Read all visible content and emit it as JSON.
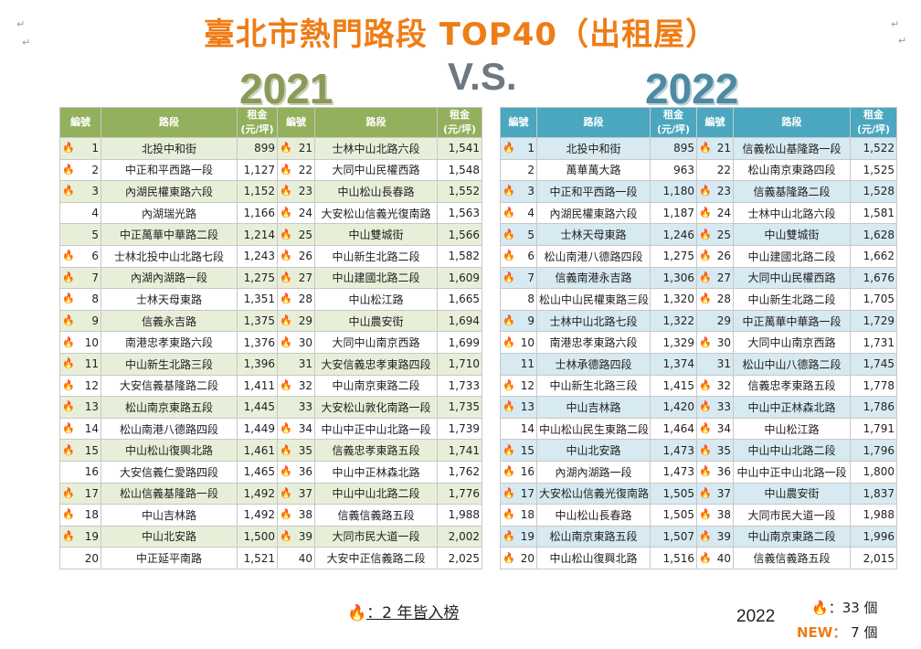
{
  "title": "臺北市熱門路段 TOP40（出租屋）",
  "year_left": "2021",
  "vs": "V.S.",
  "year_right": "2022",
  "flame": "🔥",
  "accent_orange": "#ef7d16",
  "headers": {
    "no": "編號",
    "road": "路段",
    "rent1": "租金",
    "rent2": "(元/坪)"
  },
  "t2021": [
    {
      "n": "1",
      "f": true,
      "road": "北投中和街",
      "rent": "899"
    },
    {
      "n": "2",
      "f": true,
      "road": "中正和平西路一段",
      "rent": "1,127"
    },
    {
      "n": "3",
      "f": true,
      "road": "內湖民權東路六段",
      "rent": "1,152"
    },
    {
      "n": "4",
      "f": false,
      "road": "內湖瑞光路",
      "rent": "1,166"
    },
    {
      "n": "5",
      "f": false,
      "road": "中正萬華中華路二段",
      "rent": "1,214"
    },
    {
      "n": "6",
      "f": true,
      "road": "士林北投中山北路七段",
      "rent": "1,243"
    },
    {
      "n": "7",
      "f": true,
      "road": "內湖內湖路一段",
      "rent": "1,275"
    },
    {
      "n": "8",
      "f": true,
      "road": "士林天母東路",
      "rent": "1,351"
    },
    {
      "n": "9",
      "f": true,
      "road": "信義永吉路",
      "rent": "1,375"
    },
    {
      "n": "10",
      "f": true,
      "road": "南港忠孝東路六段",
      "rent": "1,376"
    },
    {
      "n": "11",
      "f": true,
      "road": "中山新生北路三段",
      "rent": "1,396"
    },
    {
      "n": "12",
      "f": true,
      "road": "大安信義基隆路二段",
      "rent": "1,411"
    },
    {
      "n": "13",
      "f": true,
      "road": "松山南京東路五段",
      "rent": "1,445"
    },
    {
      "n": "14",
      "f": true,
      "road": "松山南港八德路四段",
      "rent": "1,449"
    },
    {
      "n": "15",
      "f": true,
      "road": "中山松山復興北路",
      "rent": "1,461"
    },
    {
      "n": "16",
      "f": false,
      "road": "大安信義仁愛路四段",
      "rent": "1,465"
    },
    {
      "n": "17",
      "f": true,
      "road": "松山信義基隆路一段",
      "rent": "1,492"
    },
    {
      "n": "18",
      "f": true,
      "road": "中山吉林路",
      "rent": "1,492"
    },
    {
      "n": "19",
      "f": true,
      "road": "中山北安路",
      "rent": "1,500"
    },
    {
      "n": "20",
      "f": false,
      "road": "中正延平南路",
      "rent": "1,521"
    },
    {
      "n": "21",
      "f": true,
      "road": "士林中山北路六段",
      "rent": "1,541"
    },
    {
      "n": "22",
      "f": true,
      "road": "大同中山民權西路",
      "rent": "1,548"
    },
    {
      "n": "23",
      "f": true,
      "road": "中山松山長春路",
      "rent": "1,552"
    },
    {
      "n": "24",
      "f": true,
      "road": "大安松山信義光復南路",
      "rent": "1,563"
    },
    {
      "n": "25",
      "f": true,
      "road": "中山雙城街",
      "rent": "1,566"
    },
    {
      "n": "26",
      "f": true,
      "road": "中山新生北路二段",
      "rent": "1,582"
    },
    {
      "n": "27",
      "f": true,
      "road": "中山建國北路二段",
      "rent": "1,609"
    },
    {
      "n": "28",
      "f": true,
      "road": "中山松江路",
      "rent": "1,665"
    },
    {
      "n": "29",
      "f": true,
      "road": "中山農安街",
      "rent": "1,694"
    },
    {
      "n": "30",
      "f": true,
      "road": "大同中山南京西路",
      "rent": "1,699"
    },
    {
      "n": "31",
      "f": false,
      "road": "大安信義忠孝東路四段",
      "rent": "1,710"
    },
    {
      "n": "32",
      "f": true,
      "road": "中山南京東路二段",
      "rent": "1,733"
    },
    {
      "n": "33",
      "f": false,
      "road": "大安松山敦化南路一段",
      "rent": "1,735"
    },
    {
      "n": "34",
      "f": true,
      "road": "中山中正中山北路一段",
      "rent": "1,739"
    },
    {
      "n": "35",
      "f": true,
      "road": "信義忠孝東路五段",
      "rent": "1,741"
    },
    {
      "n": "36",
      "f": true,
      "road": "中山中正林森北路",
      "rent": "1,762"
    },
    {
      "n": "37",
      "f": true,
      "road": "中山中山北路二段",
      "rent": "1,776"
    },
    {
      "n": "38",
      "f": true,
      "road": "信義信義路五段",
      "rent": "1,988"
    },
    {
      "n": "39",
      "f": true,
      "road": "大同市民大道一段",
      "rent": "2,002"
    },
    {
      "n": "40",
      "f": false,
      "road": "大安中正信義路二段",
      "rent": "2,025"
    }
  ],
  "t2022": [
    {
      "n": "1",
      "f": true,
      "road": "北投中和街",
      "rent": "895"
    },
    {
      "n": "2",
      "f": false,
      "road": "萬華萬大路",
      "rent": "963"
    },
    {
      "n": "3",
      "f": true,
      "road": "中正和平西路一段",
      "rent": "1,180"
    },
    {
      "n": "4",
      "f": true,
      "road": "內湖民權東路六段",
      "rent": "1,187"
    },
    {
      "n": "5",
      "f": true,
      "road": "士林天母東路",
      "rent": "1,246"
    },
    {
      "n": "6",
      "f": true,
      "road": "松山南港八德路四段",
      "rent": "1,275"
    },
    {
      "n": "7",
      "f": true,
      "road": "信義南港永吉路",
      "rent": "1,306"
    },
    {
      "n": "8",
      "f": false,
      "road": "松山中山民權東路三段",
      "rent": "1,320"
    },
    {
      "n": "9",
      "f": true,
      "road": "士林中山北路七段",
      "rent": "1,322"
    },
    {
      "n": "10",
      "f": true,
      "road": "南港忠孝東路六段",
      "rent": "1,329"
    },
    {
      "n": "11",
      "f": false,
      "road": "士林承德路四段",
      "rent": "1,374"
    },
    {
      "n": "12",
      "f": true,
      "road": "中山新生北路三段",
      "rent": "1,415"
    },
    {
      "n": "13",
      "f": true,
      "road": "中山吉林路",
      "rent": "1,420"
    },
    {
      "n": "14",
      "f": false,
      "road": "中山松山民生東路二段",
      "rent": "1,464"
    },
    {
      "n": "15",
      "f": true,
      "road": "中山北安路",
      "rent": "1,473"
    },
    {
      "n": "16",
      "f": true,
      "road": "內湖內湖路一段",
      "rent": "1,473"
    },
    {
      "n": "17",
      "f": true,
      "road": "大安松山信義光復南路",
      "rent": "1,505"
    },
    {
      "n": "18",
      "f": true,
      "road": "中山松山長春路",
      "rent": "1,505"
    },
    {
      "n": "19",
      "f": true,
      "road": "松山南京東路五段",
      "rent": "1,507"
    },
    {
      "n": "20",
      "f": true,
      "road": "中山松山復興北路",
      "rent": "1,516"
    },
    {
      "n": "21",
      "f": true,
      "road": "信義松山基隆路一段",
      "rent": "1,522"
    },
    {
      "n": "22",
      "f": false,
      "road": "松山南京東路四段",
      "rent": "1,525"
    },
    {
      "n": "23",
      "f": true,
      "road": "信義基隆路二段",
      "rent": "1,528"
    },
    {
      "n": "24",
      "f": true,
      "road": "士林中山北路六段",
      "rent": "1,581"
    },
    {
      "n": "25",
      "f": true,
      "road": "中山雙城街",
      "rent": "1,628"
    },
    {
      "n": "26",
      "f": true,
      "road": "中山建國北路二段",
      "rent": "1,662"
    },
    {
      "n": "27",
      "f": true,
      "road": "大同中山民權西路",
      "rent": "1,676"
    },
    {
      "n": "28",
      "f": true,
      "road": "中山新生北路二段",
      "rent": "1,705"
    },
    {
      "n": "29",
      "f": false,
      "road": "中正萬華中華路一段",
      "rent": "1,729"
    },
    {
      "n": "30",
      "f": true,
      "road": "大同中山南京西路",
      "rent": "1,731"
    },
    {
      "n": "31",
      "f": false,
      "road": "松山中山八德路二段",
      "rent": "1,745"
    },
    {
      "n": "32",
      "f": true,
      "road": "信義忠孝東路五段",
      "rent": "1,778"
    },
    {
      "n": "33",
      "f": true,
      "road": "中山中正林森北路",
      "rent": "1,786"
    },
    {
      "n": "34",
      "f": true,
      "road": "中山松江路",
      "rent": "1,791"
    },
    {
      "n": "35",
      "f": true,
      "road": "中山中山北路二段",
      "rent": "1,796"
    },
    {
      "n": "36",
      "f": true,
      "road": "中山中正中山北路一段",
      "rent": "1,800"
    },
    {
      "n": "37",
      "f": true,
      "road": "中山農安街",
      "rent": "1,837"
    },
    {
      "n": "38",
      "f": true,
      "road": "大同市民大道一段",
      "rent": "1,988"
    },
    {
      "n": "39",
      "f": true,
      "road": "中山南京東路二段",
      "rent": "1,996"
    },
    {
      "n": "40",
      "f": true,
      "road": "信義信義路五段",
      "rent": "2,015"
    }
  ],
  "legend": {
    "both_years": "：2 年皆入榜",
    "year": "2022",
    "count_flame": "：33 個",
    "new_label": "NEW：",
    "new_count": "7 個"
  }
}
